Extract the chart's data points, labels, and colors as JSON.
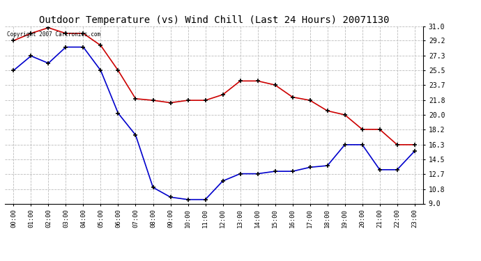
{
  "title": "Outdoor Temperature (vs) Wind Chill (Last 24 Hours) 20071130",
  "copyright_text": "Copyright 2007 Cartronics.com",
  "x_labels": [
    "00:00",
    "01:00",
    "02:00",
    "03:00",
    "04:00",
    "05:00",
    "06:00",
    "07:00",
    "08:00",
    "09:00",
    "10:00",
    "11:00",
    "12:00",
    "13:00",
    "14:00",
    "15:00",
    "16:00",
    "17:00",
    "18:00",
    "19:00",
    "20:00",
    "21:00",
    "22:00",
    "23:00"
  ],
  "temp_red": [
    29.2,
    30.1,
    30.8,
    30.1,
    30.1,
    28.6,
    25.5,
    22.0,
    21.8,
    21.5,
    21.8,
    21.8,
    22.5,
    24.2,
    24.2,
    23.7,
    22.2,
    21.8,
    20.5,
    20.0,
    18.2,
    18.2,
    16.3,
    16.3
  ],
  "wind_blue": [
    25.5,
    27.3,
    26.4,
    28.4,
    28.4,
    25.5,
    20.2,
    17.5,
    11.0,
    9.8,
    9.5,
    9.5,
    11.8,
    12.7,
    12.7,
    13.0,
    13.0,
    13.5,
    13.7,
    16.3,
    16.3,
    13.2,
    13.2,
    15.5
  ],
  "ylim_min": 9.0,
  "ylim_max": 31.0,
  "yticks": [
    9.0,
    10.8,
    12.7,
    14.5,
    16.3,
    18.2,
    20.0,
    21.8,
    23.7,
    25.5,
    27.3,
    29.2,
    31.0
  ],
  "red_color": "#cc0000",
  "blue_color": "#0000cc",
  "background_color": "#ffffff",
  "grid_color": "#bbbbbb",
  "title_fontsize": 10,
  "marker": "+",
  "marker_color": "#000000",
  "marker_size": 5,
  "linewidth": 1.2
}
